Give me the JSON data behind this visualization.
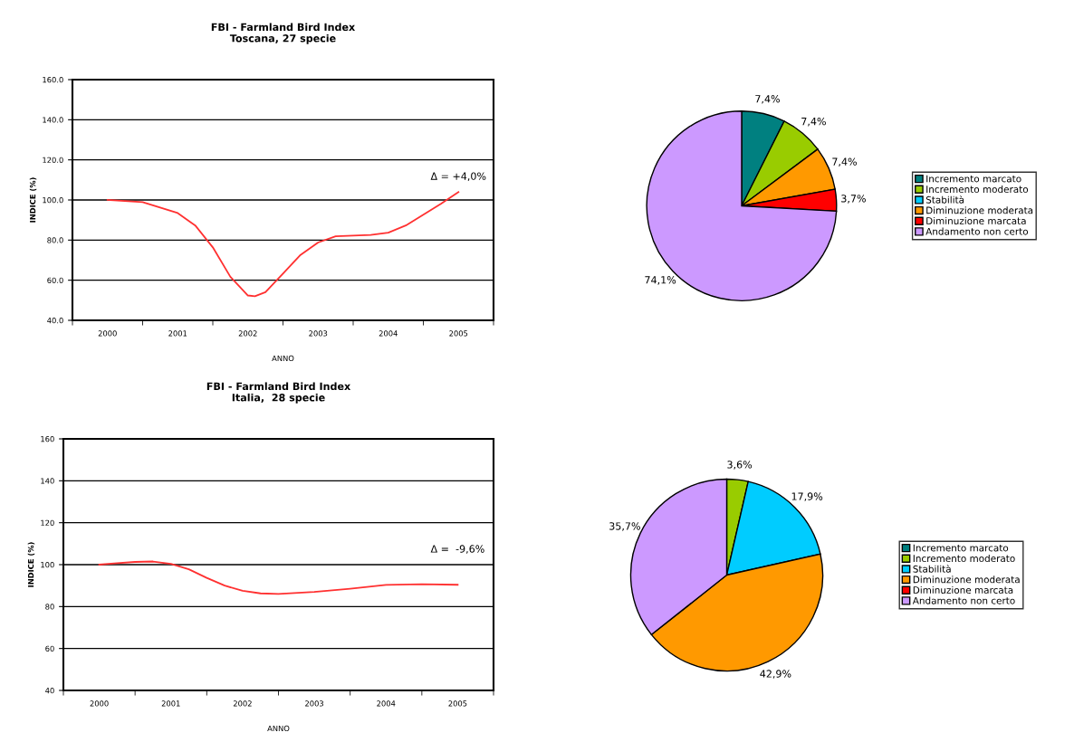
{
  "chart_data": [
    {
      "type": "line",
      "title": "FBI - Farmland Bird Index\nToscana, 27 specie",
      "xlabel": "ANNO",
      "ylabel": "INDICE (%)",
      "x": [
        2000,
        2000.5,
        2001,
        2001.25,
        2001.5,
        2001.75,
        2002,
        2002.1,
        2002.25,
        2002.5,
        2002.75,
        2003,
        2003.25,
        2003.5,
        2003.75,
        2004,
        2004.25,
        2004.5,
        2004.75,
        2005
      ],
      "series": [
        {
          "color": "#ff3030",
          "values": [
            100,
            98.9,
            93.5,
            87.3,
            76.4,
            61.7,
            52.4,
            52,
            54,
            63.3,
            72.6,
            78.8,
            81.9,
            82.2,
            82.6,
            83.7,
            87.3,
            92.7,
            98.1,
            104
          ]
        }
      ],
      "xlim": [
        1999.5,
        2005.5
      ],
      "xticks": [
        {
          "value": 1999.5,
          "label": null
        },
        2000,
        {
          "value": 2000.5,
          "label": null
        },
        2001,
        {
          "value": 2001.5,
          "label": null
        },
        2002,
        {
          "value": 2002.5,
          "label": null
        },
        2003,
        {
          "value": 2003.5,
          "label": null
        },
        2004,
        {
          "value": 2004.5,
          "label": null
        },
        2005,
        {
          "value": 2005.5,
          "label": null
        }
      ],
      "ylim": [
        40,
        160
      ],
      "yticks": [
        {
          "value": 40,
          "label": "40.0"
        },
        {
          "value": 60,
          "label": "60.0"
        },
        {
          "value": 80,
          "label": "80.0"
        },
        {
          "value": 100,
          "label": "100.0"
        },
        {
          "value": 120,
          "label": "120.0"
        },
        {
          "value": 140,
          "label": "140.0"
        },
        {
          "value": 160,
          "label": "160.0"
        }
      ],
      "grid": "y",
      "marker": "none",
      "line_style": "solid",
      "annotations": [
        "Δ = +4,0%"
      ]
    },
    {
      "type": "pie",
      "categories": [
        "Incremento marcato",
        "Incremento moderato",
        "Stabilità",
        "Diminuzione moderata",
        "Diminuzione marcata",
        "Andamento non certo"
      ],
      "values": [
        7.4,
        7.4,
        0,
        7.4,
        3.7,
        74.1
      ],
      "colors": [
        "#008080",
        "#99cc00",
        "#00ccff",
        "#ff9900",
        "#ff0000",
        "#cc99ff"
      ],
      "value_labels": [
        "7,4%",
        "7,4%",
        null,
        "7,4%",
        "3,7%",
        "74,1%"
      ],
      "legend": "right"
    },
    {
      "type": "line",
      "title": "FBI - Farmland Bird Index\nItalia,  28 specie",
      "xlabel": "ANNO",
      "ylabel": "INDICE (%)",
      "x": [
        2000,
        2000.25,
        2000.5,
        2000.75,
        2001,
        2001.25,
        2001.5,
        2001.75,
        2002,
        2002.25,
        2002.5,
        2003,
        2003.5,
        2004,
        2004.5,
        2005
      ],
      "series": [
        {
          "color": "#ff3030",
          "values": [
            100,
            100.7,
            101.3,
            101.5,
            100.4,
            97.8,
            93.7,
            90,
            87.5,
            86.3,
            86,
            87,
            88.5,
            90.3,
            90.7,
            90.4
          ]
        }
      ],
      "xlim": [
        1999.5,
        2005.5
      ],
      "xticks": [
        {
          "value": 1999.5,
          "label": null
        },
        2000,
        {
          "value": 2000.5,
          "label": null
        },
        2001,
        {
          "value": 2001.5,
          "label": null
        },
        2002,
        {
          "value": 2002.5,
          "label": null
        },
        2003,
        {
          "value": 2003.5,
          "label": null
        },
        2004,
        {
          "value": 2004.5,
          "label": null
        },
        2005,
        {
          "value": 2005.5,
          "label": null
        }
      ],
      "ylim": [
        40,
        160
      ],
      "yticks": [
        40,
        60,
        80,
        100,
        120,
        140,
        160
      ],
      "grid": "y",
      "marker": "none",
      "line_style": "solid",
      "annotations": [
        "Δ =  -9,6%"
      ]
    },
    {
      "type": "pie",
      "categories": [
        "Incremento marcato",
        "Incremento moderato",
        "Stabilità",
        "Diminuzione moderata",
        "Diminuzione marcata",
        "Andamento non certo"
      ],
      "values": [
        0,
        3.6,
        17.9,
        42.9,
        0,
        35.7
      ],
      "colors": [
        "#008080",
        "#99cc00",
        "#00ccff",
        "#ff9900",
        "#ff0000",
        "#cc99ff"
      ],
      "value_labels": [
        null,
        "3,6%",
        "17,9%",
        "42,9%",
        null,
        "35,7%"
      ],
      "legend": "right"
    }
  ]
}
